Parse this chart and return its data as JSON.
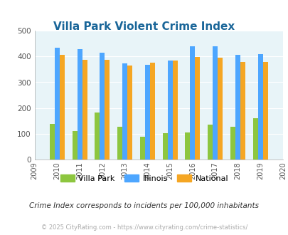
{
  "title": "Villa Park Violent Crime Index",
  "years": [
    2010,
    2011,
    2012,
    2013,
    2014,
    2015,
    2016,
    2017,
    2018,
    2019
  ],
  "villa_park": [
    138,
    110,
    183,
    127,
    90,
    102,
    105,
    135,
    127,
    160
  ],
  "illinois": [
    433,
    428,
    415,
    372,
    368,
    383,
    438,
    438,
    405,
    408
  ],
  "national": [
    405,
    387,
    387,
    365,
    375,
    383,
    397,
    394,
    379,
    379
  ],
  "villa_park_color": "#8dc63f",
  "illinois_color": "#4da6ff",
  "national_color": "#f5a623",
  "bg_color": "#e8f4f8",
  "title_color": "#1a6699",
  "ylim": [
    0,
    500
  ],
  "yticks": [
    0,
    100,
    200,
    300,
    400,
    500
  ],
  "legend_labels": [
    "Villa Park",
    "Illinois",
    "National"
  ],
  "footnote1": "Crime Index corresponds to incidents per 100,000 inhabitants",
  "footnote2": "© 2025 CityRating.com - https://www.cityrating.com/crime-statistics/",
  "grid_color": "#ffffff",
  "bar_width": 0.22,
  "figsize": [
    4.06,
    3.3
  ],
  "dpi": 100
}
